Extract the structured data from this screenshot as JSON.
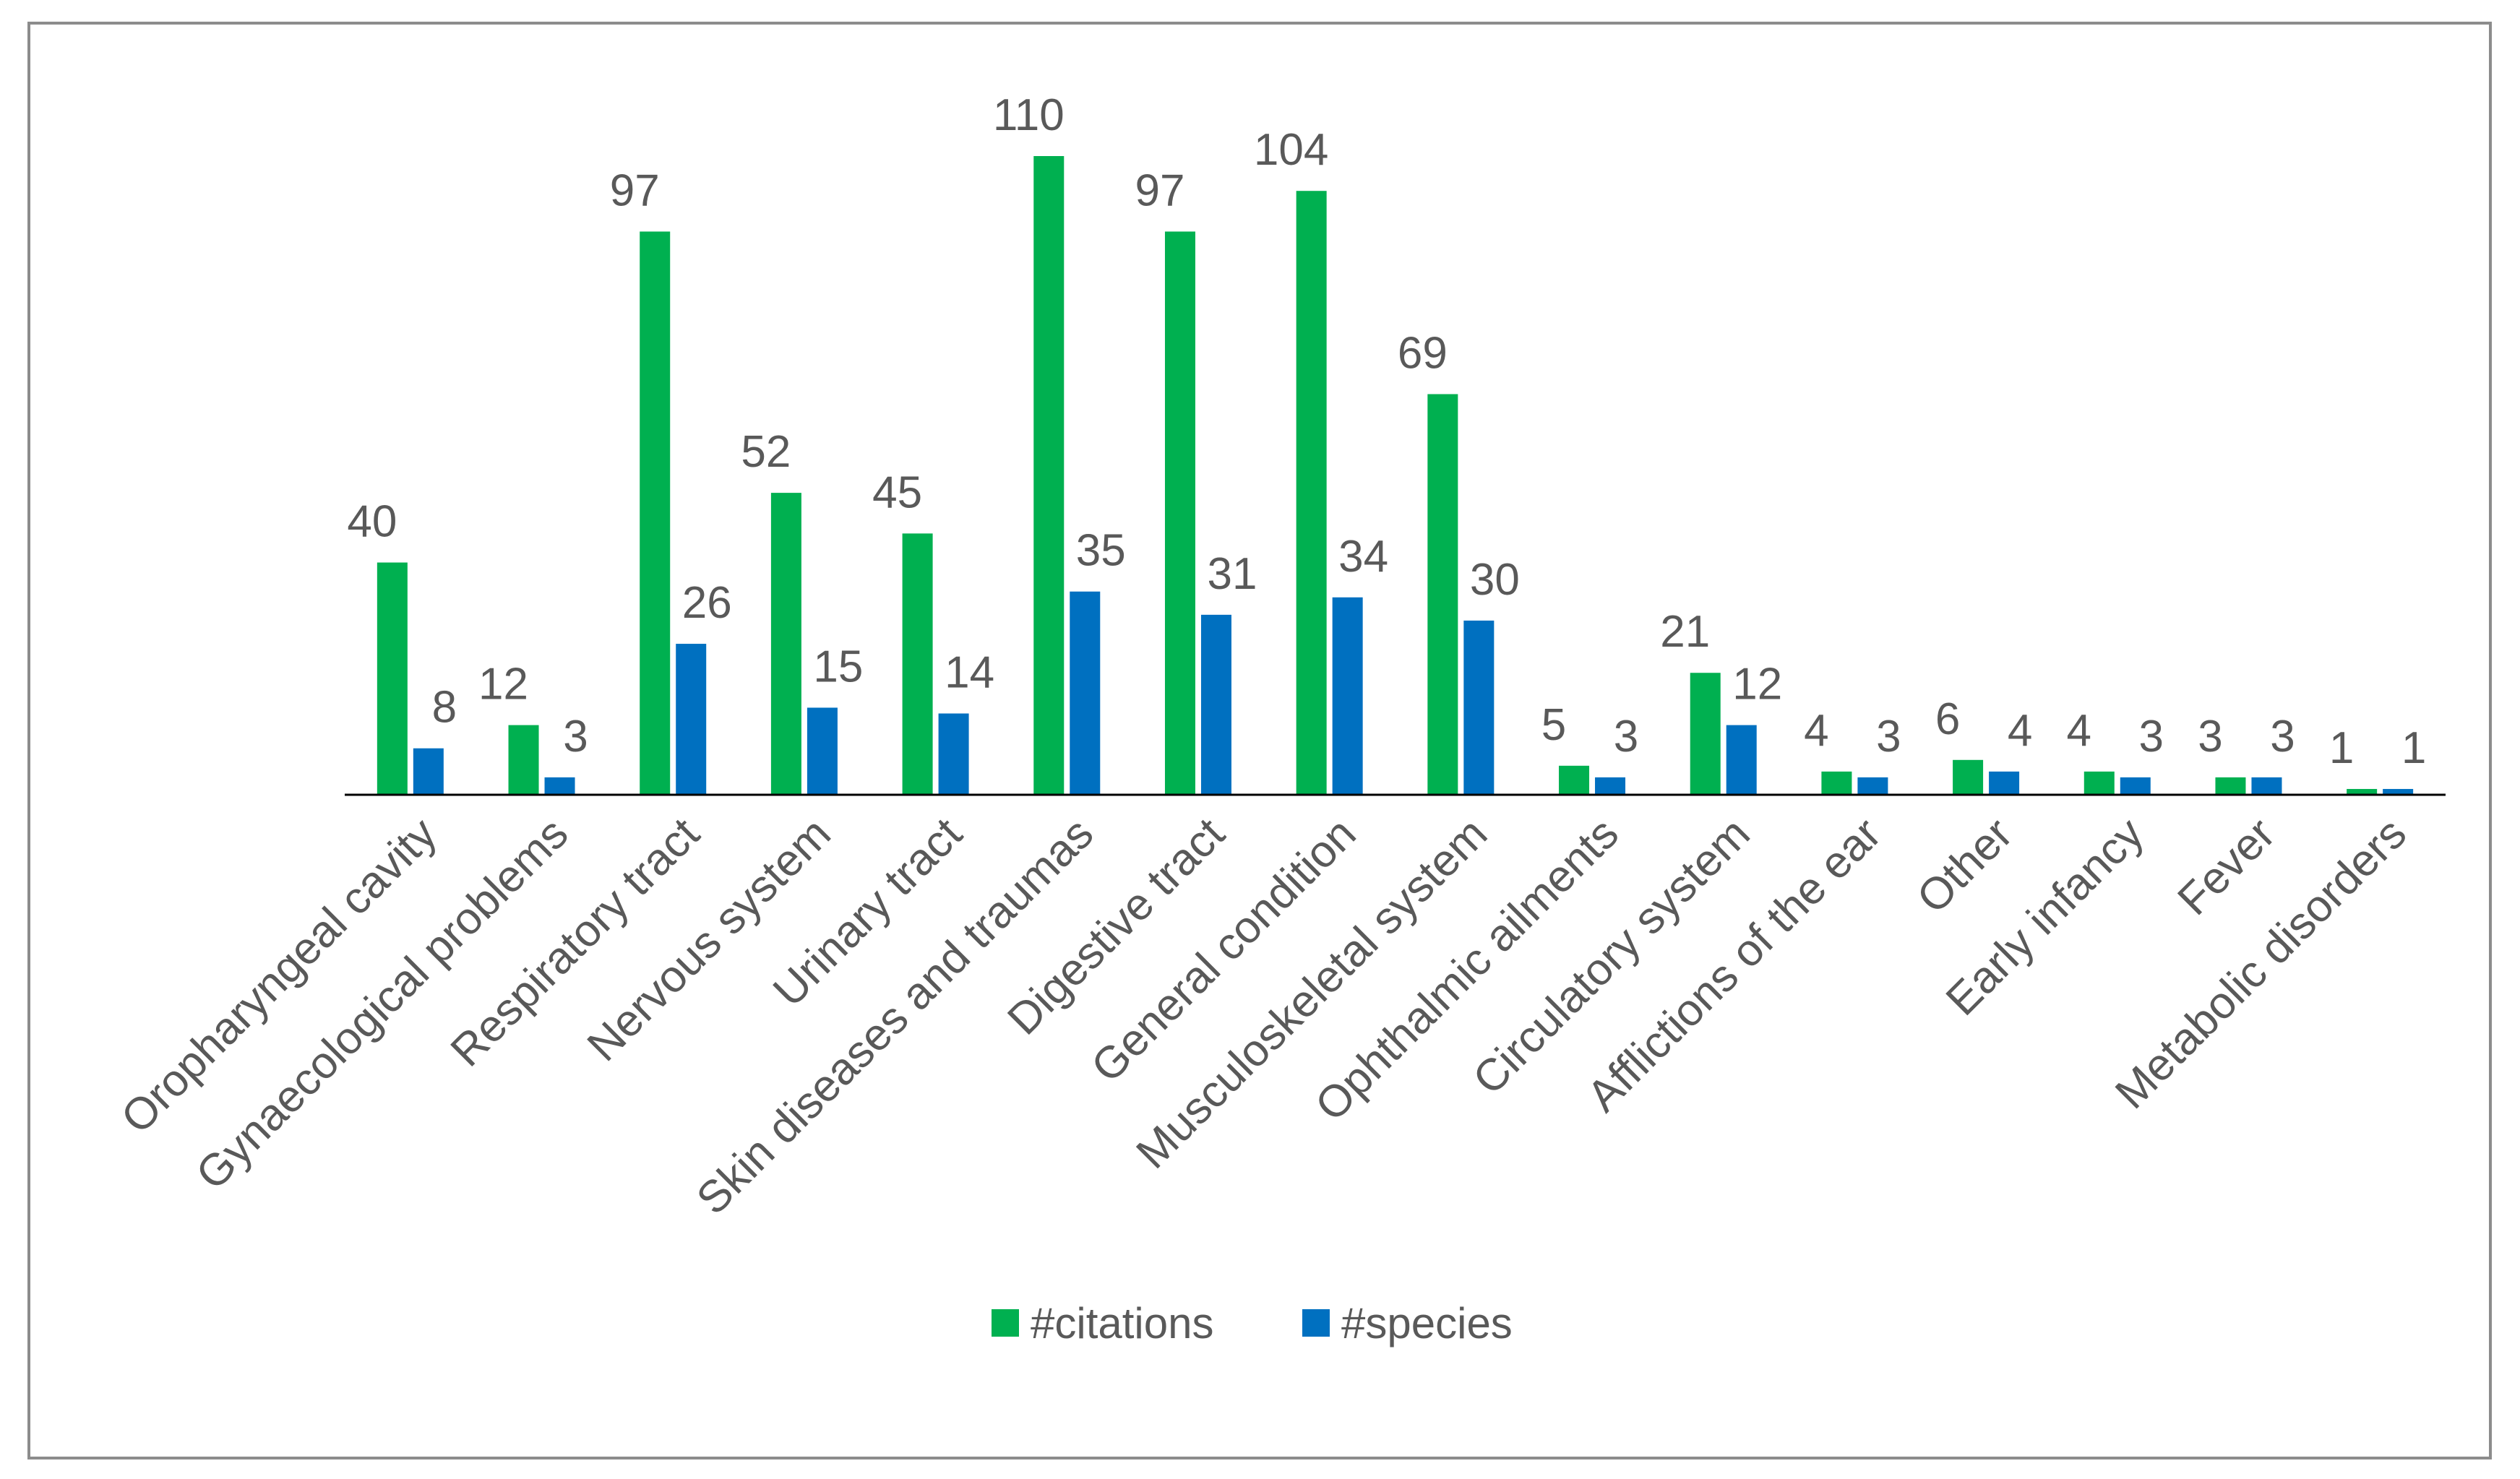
{
  "chart_data": {
    "type": "bar",
    "title": "",
    "xlabel": "",
    "ylabel": "",
    "ylim": [
      0,
      110
    ],
    "grid": false,
    "legend_position": "bottom",
    "categories": [
      "Oropharyngeal cavity",
      "Gynaecological problems",
      "Respiratory tract",
      "Nervous system",
      "Urinary tract",
      "Skin diseases and traumas",
      "Digestive tract",
      "General condition",
      "Musculoskeletal system",
      "Ophthalmic ailments",
      "Circulatory system",
      "Afflictions of the ear",
      "Other",
      "Early infancy",
      "Fever",
      "Metabolic disorders"
    ],
    "series": [
      {
        "name": "#citations",
        "color": "#00b050",
        "values": [
          40,
          12,
          97,
          52,
          45,
          110,
          97,
          104,
          69,
          5,
          21,
          4,
          6,
          4,
          3,
          1
        ]
      },
      {
        "name": "#species",
        "color": "#0070c0",
        "values": [
          8,
          3,
          26,
          15,
          14,
          35,
          31,
          34,
          30,
          3,
          12,
          3,
          4,
          3,
          3,
          1
        ]
      }
    ]
  }
}
